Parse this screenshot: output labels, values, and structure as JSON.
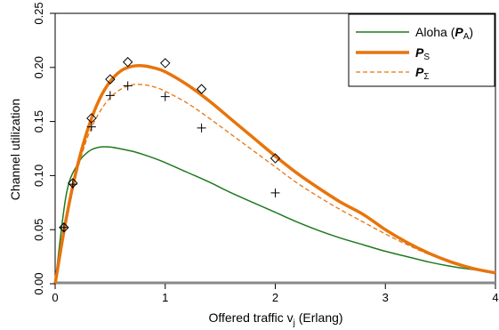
{
  "chart_data": {
    "type": "line",
    "title": "",
    "xlabel": "Offered traffic  v",
    "xlabel_sub": "j",
    "xlabel_suffix": " (Erlang)",
    "ylabel": "Channel utilization",
    "xlim": [
      0,
      4
    ],
    "ylim": [
      0,
      0.25
    ],
    "xticks": [
      0,
      1,
      2,
      3,
      4
    ],
    "xtick_labels": [
      "0",
      "1",
      "2",
      "3",
      "4"
    ],
    "yticks": [
      0,
      0.05,
      0.1,
      0.15,
      0.2,
      0.25
    ],
    "ytick_labels": [
      "0.00",
      "0.05",
      "0.10",
      "0.15",
      "0.20",
      "0.25"
    ],
    "grid": false,
    "legend_position": "top-right",
    "series": [
      {
        "name": "Aloha (PA)",
        "legend_main": "Aloha (",
        "legend_symbol": "P",
        "legend_sub": "A",
        "legend_suffix": ")",
        "color": "#1e7a1e",
        "style": "solid",
        "x": [
          0,
          0.1,
          0.2,
          0.3,
          0.4,
          0.5,
          0.6,
          0.7,
          0.8,
          0.9,
          1.0,
          1.2,
          1.4,
          1.6,
          1.8,
          2.0,
          2.2,
          2.4,
          2.6,
          2.8,
          3.0,
          3.2,
          3.4,
          3.6,
          3.8,
          4.0
        ],
        "y": [
          0,
          0.0819,
          0.1098,
          0.122,
          0.1262,
          0.1264,
          0.1246,
          0.1225,
          0.1195,
          0.116,
          0.112,
          0.103,
          0.094,
          0.084,
          0.075,
          0.066,
          0.057,
          0.049,
          0.042,
          0.036,
          0.03,
          0.025,
          0.02,
          0.016,
          0.013,
          0.01
        ]
      },
      {
        "name": "PS",
        "legend_symbol": "P",
        "legend_sub": "S",
        "color": "#e8740c",
        "style": "thick",
        "x": [
          0,
          0.1,
          0.2,
          0.3,
          0.4,
          0.5,
          0.6,
          0.7,
          0.8,
          0.9,
          1.0,
          1.2,
          1.4,
          1.6,
          1.8,
          2.0,
          2.2,
          2.4,
          2.6,
          2.8,
          3.0,
          3.2,
          3.4,
          3.6,
          3.8,
          4.0
        ],
        "y": [
          0,
          0.06,
          0.108,
          0.144,
          0.17,
          0.187,
          0.197,
          0.201,
          0.2015,
          0.1995,
          0.196,
          0.184,
          0.169,
          0.152,
          0.135,
          0.118,
          0.102,
          0.088,
          0.075,
          0.064,
          0.05,
          0.038,
          0.028,
          0.02,
          0.014,
          0.01
        ]
      },
      {
        "name": "PΣ",
        "legend_symbol": "P",
        "legend_sub": "Σ",
        "color": "#e8740c",
        "style": "dashed",
        "x": [
          0,
          0.1,
          0.2,
          0.3,
          0.4,
          0.5,
          0.6,
          0.7,
          0.8,
          0.9,
          1.0,
          1.2,
          1.4,
          1.6,
          1.8,
          2.0,
          2.2,
          2.4,
          2.6,
          2.8,
          3.0,
          3.2,
          3.4,
          3.6,
          3.8,
          4.0
        ],
        "y": [
          0,
          0.059,
          0.104,
          0.137,
          0.158,
          0.172,
          0.18,
          0.184,
          0.184,
          0.182,
          0.178,
          0.167,
          0.153,
          0.138,
          0.123,
          0.108,
          0.093,
          0.08,
          0.068,
          0.057,
          0.046,
          0.036,
          0.027,
          0.02,
          0.014,
          0.01
        ]
      }
    ],
    "scatter": [
      {
        "marker": "diamond",
        "x": [
          0.08,
          0.16,
          0.33,
          0.5,
          0.66,
          1.0,
          1.33,
          2.0
        ],
        "y": [
          0.052,
          0.093,
          0.153,
          0.189,
          0.205,
          0.204,
          0.18,
          0.116
        ]
      },
      {
        "marker": "plus",
        "x": [
          0.08,
          0.16,
          0.33,
          0.5,
          0.66,
          1.0,
          1.33,
          2.0
        ],
        "y": [
          0.052,
          0.092,
          0.145,
          0.174,
          0.183,
          0.173,
          0.144,
          0.084
        ]
      }
    ]
  }
}
